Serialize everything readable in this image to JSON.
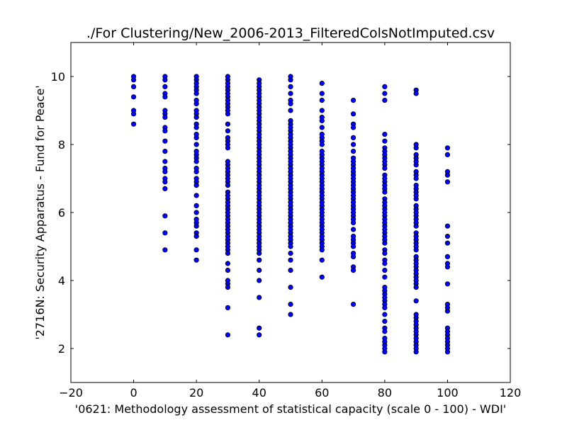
{
  "chart_data": {
    "type": "scatter",
    "title": "./For Clustering/New_2006-2013_FilteredColsNotImputed.csv",
    "xlabel": "'0621: Methodology assessment of statistical capacity  (scale 0 - 100) - WDI'",
    "ylabel": "'2716N: Security Apparatus - Fund for Peace'",
    "xlim": [
      -20,
      120
    ],
    "ylim": [
      1,
      11
    ],
    "x_ticks": [
      -20,
      0,
      20,
      40,
      60,
      80,
      100,
      120
    ],
    "y_ticks": [
      2,
      4,
      6,
      8,
      10
    ],
    "grid": false,
    "legend": "none",
    "marker_color": "#0000ff",
    "marker_edge_color": "#000000",
    "series": [
      {
        "points": [
          {
            "x": 0,
            "y": [
              10.0,
              9.9,
              9.7,
              9.4,
              9.0,
              8.9,
              8.6
            ]
          },
          {
            "x": 10,
            "y": [
              10.0,
              9.9,
              9.7,
              9.5,
              9.4,
              9.0,
              8.9,
              8.8,
              8.5,
              8.4,
              8.1,
              7.8,
              7.5,
              7.3,
              7.2,
              7.0,
              6.9,
              6.7,
              5.9,
              5.4,
              4.9
            ]
          },
          {
            "x": 20,
            "y": [
              10.0,
              9.9,
              9.8,
              9.7,
              9.6,
              9.5,
              9.3,
              9.2,
              9.0,
              8.9,
              8.8,
              8.6,
              8.5,
              8.3,
              8.2,
              8.0,
              7.8,
              7.7,
              7.6,
              7.5,
              7.3,
              7.2,
              7.0,
              6.9,
              6.8,
              6.5,
              6.2,
              6.0,
              5.8,
              5.7,
              5.6,
              5.4,
              5.3,
              4.9,
              4.6
            ]
          },
          {
            "x": 30,
            "y": [
              10.0,
              9.9,
              9.8,
              9.7,
              9.6,
              9.5,
              9.4,
              9.3,
              9.2,
              9.1,
              9.0,
              8.9,
              8.6,
              8.4,
              8.2,
              8.1,
              8.0,
              7.9,
              7.5,
              7.4,
              7.3,
              7.2,
              7.1,
              7.0,
              6.9,
              6.8,
              6.6,
              6.5,
              6.4,
              6.3,
              6.2,
              6.1,
              6.0,
              5.9,
              5.8,
              5.7,
              5.6,
              5.5,
              5.4,
              5.3,
              5.2,
              5.1,
              5.0,
              4.9,
              4.8,
              4.5,
              4.3,
              4.0,
              3.9,
              3.8,
              3.2,
              2.4
            ]
          },
          {
            "x": 40,
            "y": [
              9.9,
              9.8,
              9.7,
              9.6,
              9.5,
              9.4,
              9.3,
              9.2,
              9.1,
              9.0,
              8.9,
              8.8,
              8.7,
              8.6,
              8.5,
              8.4,
              8.3,
              8.2,
              8.1,
              8.0,
              7.9,
              7.8,
              7.7,
              7.6,
              7.5,
              7.4,
              7.3,
              7.2,
              7.1,
              7.0,
              6.9,
              6.8,
              6.7,
              6.6,
              6.5,
              6.4,
              6.3,
              6.2,
              6.1,
              6.0,
              5.9,
              5.8,
              5.7,
              5.6,
              5.5,
              5.4,
              5.3,
              5.2,
              5.1,
              5.0,
              4.9,
              4.8,
              4.6,
              4.3,
              4.0,
              3.5,
              2.6,
              2.4
            ]
          },
          {
            "x": 50,
            "y": [
              10.0,
              9.9,
              9.7,
              9.5,
              9.3,
              9.2,
              9.0,
              8.7,
              8.6,
              8.5,
              8.4,
              8.3,
              8.2,
              8.1,
              8.0,
              7.9,
              7.8,
              7.7,
              7.6,
              7.5,
              7.4,
              7.3,
              7.2,
              7.1,
              7.0,
              6.9,
              6.8,
              6.7,
              6.6,
              6.5,
              6.4,
              6.3,
              6.2,
              6.1,
              6.0,
              5.9,
              5.8,
              5.7,
              5.6,
              5.5,
              5.4,
              5.3,
              5.2,
              5.1,
              5.0,
              4.8,
              4.6,
              4.3,
              3.8,
              3.3,
              3.0
            ]
          },
          {
            "x": 60,
            "y": [
              9.8,
              9.5,
              9.3,
              9.0,
              8.8,
              8.7,
              8.5,
              8.3,
              8.2,
              8.1,
              8.0,
              7.8,
              7.7,
              7.6,
              7.5,
              7.4,
              7.3,
              7.2,
              7.1,
              7.0,
              6.9,
              6.8,
              6.7,
              6.6,
              6.5,
              6.4,
              6.3,
              6.2,
              6.1,
              6.0,
              5.9,
              5.8,
              5.7,
              5.6,
              5.5,
              5.4,
              5.3,
              5.2,
              5.1,
              5.0,
              4.9,
              4.6,
              4.1
            ]
          },
          {
            "x": 70,
            "y": [
              9.3,
              8.9,
              8.6,
              8.5,
              8.2,
              8.0,
              7.8,
              7.6,
              7.5,
              7.4,
              7.3,
              7.2,
              7.1,
              7.0,
              6.9,
              6.8,
              6.7,
              6.6,
              6.5,
              6.4,
              6.3,
              6.2,
              6.1,
              6.0,
              5.9,
              5.8,
              5.7,
              5.5,
              5.3,
              5.2,
              5.1,
              5.0,
              4.8,
              4.7,
              4.4,
              4.3,
              3.3
            ]
          },
          {
            "x": 80,
            "y": [
              9.7,
              9.5,
              9.3,
              8.3,
              8.1,
              7.9,
              7.8,
              7.7,
              7.6,
              7.5,
              7.4,
              7.3,
              7.1,
              7.0,
              6.9,
              6.8,
              6.7,
              6.6,
              6.4,
              6.3,
              6.2,
              6.1,
              6.0,
              5.9,
              5.8,
              5.7,
              5.6,
              5.5,
              5.4,
              5.3,
              5.2,
              5.1,
              4.9,
              4.8,
              4.6,
              4.5,
              4.3,
              4.1,
              3.8,
              3.7,
              3.6,
              3.5,
              3.4,
              3.3,
              3.2,
              3.0,
              2.8,
              2.6,
              2.5,
              2.3,
              2.2,
              2.1,
              2.0,
              1.9
            ]
          },
          {
            "x": 90,
            "y": [
              9.6,
              9.5,
              8.0,
              7.9,
              7.7,
              7.6,
              7.5,
              7.4,
              7.2,
              7.1,
              7.0,
              6.8,
              6.7,
              6.6,
              6.5,
              6.4,
              6.2,
              6.1,
              6.0,
              5.9,
              5.8,
              5.7,
              5.6,
              5.4,
              5.3,
              5.2,
              5.1,
              5.0,
              4.9,
              4.7,
              4.6,
              4.5,
              4.4,
              4.3,
              4.2,
              4.1,
              4.0,
              3.9,
              3.8,
              3.4,
              3.0,
              2.9,
              2.8,
              2.7,
              2.6,
              2.5,
              2.4,
              2.3,
              2.2,
              2.1,
              2.0,
              1.9
            ]
          },
          {
            "x": 100,
            "y": [
              7.9,
              7.7,
              7.2,
              7.1,
              6.9,
              5.6,
              5.3,
              5.1,
              4.7,
              4.5,
              4.4,
              3.9,
              3.3,
              3.2,
              3.1,
              2.6,
              2.5,
              2.4,
              2.3,
              2.2,
              2.1,
              2.0,
              1.9
            ]
          }
        ]
      }
    ]
  }
}
